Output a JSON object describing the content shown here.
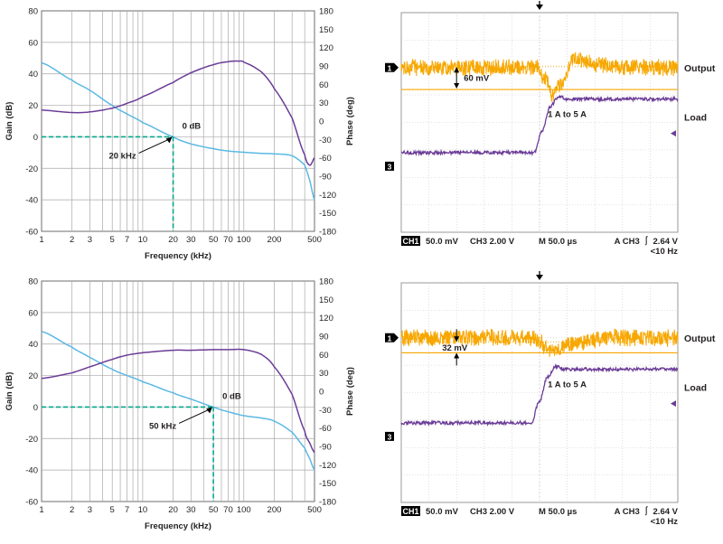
{
  "colors": {
    "gain": "#5bb8e4",
    "phase": "#6b3c97",
    "guide": "#00a98f",
    "grid": "#a8a8a8",
    "scope_output": "#f7a700",
    "scope_load": "#6b3c97",
    "scope_grid": "#c8c8c8",
    "text": "#231f20"
  },
  "chart_data": [
    {
      "type": "line",
      "panel": "bode-top",
      "xlabel": "Frequency (kHz)",
      "ylabel": "Gain (dB)",
      "y2label": "Phase (deg)",
      "xscale": "log",
      "xlim": [
        1,
        500
      ],
      "ylim": [
        -60,
        80
      ],
      "y2lim": [
        -180,
        180
      ],
      "x_ticks": [
        1,
        2,
        3,
        5,
        7,
        10,
        20,
        30,
        50,
        70,
        100,
        200,
        500
      ],
      "y_ticks": [
        80,
        60,
        40,
        20,
        0,
        -20,
        -40,
        -60
      ],
      "y2_ticks": [
        180,
        150,
        120,
        90,
        60,
        30,
        0,
        -30,
        -60,
        -90,
        -120,
        -150,
        -180
      ],
      "series": [
        {
          "role": "gain",
          "axis": "left",
          "x": [
            1,
            2,
            3,
            5,
            7,
            10,
            20,
            30,
            50,
            70,
            100,
            150,
            200,
            300,
            400,
            450,
            500
          ],
          "y": [
            47,
            36,
            29.5,
            20,
            14.5,
            9,
            0,
            -4.5,
            -7.5,
            -9,
            -9.8,
            -10.5,
            -10.8,
            -12,
            -18,
            -28,
            -40
          ]
        },
        {
          "role": "phase",
          "axis": "right",
          "x": [
            1,
            2,
            3,
            5,
            7,
            10,
            20,
            30,
            50,
            70,
            90,
            100,
            150,
            200,
            300,
            400,
            450,
            500
          ],
          "y": [
            18,
            14,
            15,
            21,
            29,
            40,
            63,
            79,
            92,
            97,
            98,
            96,
            80,
            53,
            5,
            -55,
            -72,
            -60
          ]
        }
      ],
      "annotations": {
        "crossover_label": "20 kHz",
        "zero_db_label": "0 dB",
        "crossover_x": 20
      }
    },
    {
      "type": "line",
      "panel": "bode-bottom",
      "xlabel": "Frequency (kHz)",
      "ylabel": "Gain (dB)",
      "y2label": "Phase (deg)",
      "xscale": "log",
      "xlim": [
        1,
        500
      ],
      "ylim": [
        -60,
        80
      ],
      "y2lim": [
        -180,
        180
      ],
      "x_ticks": [
        1,
        2,
        3,
        5,
        7,
        10,
        20,
        30,
        50,
        70,
        100,
        200,
        500
      ],
      "y_ticks": [
        80,
        60,
        40,
        20,
        0,
        -20,
        -40,
        -60
      ],
      "y2_ticks": [
        180,
        150,
        120,
        90,
        60,
        30,
        0,
        -30,
        -60,
        -90,
        -120,
        -150,
        -180
      ],
      "series": [
        {
          "role": "gain",
          "axis": "left",
          "x": [
            1,
            2,
            3,
            5,
            7,
            10,
            20,
            30,
            50,
            70,
            100,
            150,
            200,
            300,
            400,
            450,
            500
          ],
          "y": [
            48,
            38,
            31.5,
            24,
            20,
            16,
            9,
            5,
            0,
            -3,
            -5.5,
            -7,
            -9,
            -16,
            -26,
            -33,
            -40
          ]
        },
        {
          "role": "phase",
          "axis": "right",
          "x": [
            1,
            2,
            3,
            5,
            7,
            10,
            20,
            30,
            50,
            70,
            100,
            150,
            200,
            300,
            400,
            450,
            500
          ],
          "y": [
            21,
            30,
            40,
            52,
            59,
            63,
            67,
            67,
            68,
            68,
            68,
            60,
            40,
            -5,
            -65,
            -85,
            -100
          ]
        }
      ],
      "annotations": {
        "crossover_label": "50 kHz",
        "zero_db_label": "0 dB",
        "crossover_x": 50
      }
    },
    {
      "type": "line",
      "panel": "scope-top",
      "ch1_marker": "1",
      "ch3_marker": "3",
      "output_label": "Output",
      "load_label": "Load",
      "step_label": "1 A to 5 A",
      "delta_label": "60 mV",
      "status": {
        "ch1": "CH1",
        "ch1_scale": "50.0 mV",
        "ch3_scale": "CH3  2.00 V",
        "timebase": "M 50.0 µs",
        "trigger": "A  CH3  ⎰ 2.64 V",
        "trigger_filter": "<10 Hz"
      },
      "x_divisions": 10,
      "y_divisions": 8,
      "series": [
        {
          "name": "Output",
          "x": [
            0,
            4.9,
            5.2,
            5.5,
            5.8,
            6.2,
            7,
            8,
            10
          ],
          "y": [
            2.0,
            2.0,
            1.65,
            1.0,
            1.4,
            2.3,
            2.15,
            2.0,
            2.0
          ]
        },
        {
          "name": "Load",
          "x": [
            0,
            4.8,
            5.1,
            5.4,
            5.7,
            6,
            10
          ],
          "y": [
            -1.1,
            -1.1,
            -0.3,
            0.6,
            0.95,
            0.85,
            0.85
          ]
        }
      ]
    },
    {
      "type": "line",
      "panel": "scope-bottom",
      "ch1_marker": "1",
      "ch3_marker": "3",
      "output_label": "Output",
      "load_label": "Load",
      "step_label": "1 A to 5 A",
      "delta_label": "32 mV",
      "status": {
        "ch1": "CH1",
        "ch1_scale": "50.0 mV",
        "ch3_scale": "CH3  2.00 V",
        "timebase": "M 50.0 µs",
        "trigger": "A  CH3  ⎰ 2.64 V",
        "trigger_filter": "<10 Hz"
      },
      "x_divisions": 10,
      "y_divisions": 8,
      "series": [
        {
          "name": "Output",
          "x": [
            0,
            4.7,
            5.0,
            5.3,
            5.6,
            6.2,
            7.5,
            10
          ],
          "y": [
            2.0,
            2.0,
            1.85,
            1.6,
            1.55,
            1.8,
            2.0,
            2.0
          ]
        },
        {
          "name": "Load",
          "x": [
            0,
            4.7,
            5.0,
            5.3,
            5.6,
            5.9,
            10
          ],
          "y": [
            -1.1,
            -1.1,
            -0.3,
            0.6,
            0.95,
            0.85,
            0.85
          ]
        }
      ]
    }
  ]
}
